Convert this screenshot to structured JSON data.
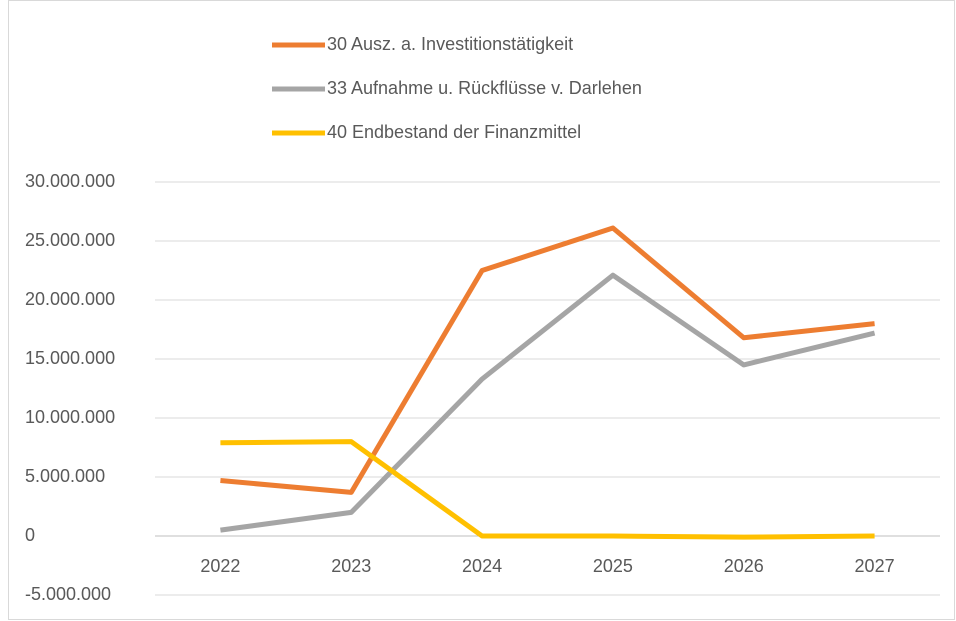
{
  "chart_data": {
    "type": "line",
    "categories": [
      "2022",
      "2023",
      "2024",
      "2025",
      "2026",
      "2027"
    ],
    "series": [
      {
        "name": "30 Ausz. a. Investitionstätigkeit",
        "color": "#ed7d31",
        "values": [
          4700000,
          3700000,
          22500000,
          26100000,
          16800000,
          18000000
        ]
      },
      {
        "name": "33 Aufnahme u. Rückflüsse v. Darlehen",
        "color": "#a5a5a5",
        "values": [
          500000,
          2000000,
          13300000,
          22100000,
          14500000,
          17200000
        ]
      },
      {
        "name": "40 Endbestand der Finanzmittel",
        "color": "#ffc000",
        "values": [
          7900000,
          8000000,
          0,
          0,
          -100000,
          0
        ]
      }
    ],
    "ylim": [
      -5000000,
      30000000
    ],
    "yticks": [
      {
        "value": -5000000,
        "label": "-5.000.000"
      },
      0,
      {
        "value": 5000000,
        "label": "5.000.000"
      },
      {
        "value": 10000000,
        "label": "10.000.000"
      },
      {
        "value": 15000000,
        "label": "15.000.000"
      },
      {
        "value": 20000000,
        "label": "20.000.000"
      },
      {
        "value": 25000000,
        "label": "25.000.000"
      },
      {
        "value": 30000000,
        "label": "30.000.000"
      }
    ],
    "grid": true,
    "legend": "top"
  }
}
